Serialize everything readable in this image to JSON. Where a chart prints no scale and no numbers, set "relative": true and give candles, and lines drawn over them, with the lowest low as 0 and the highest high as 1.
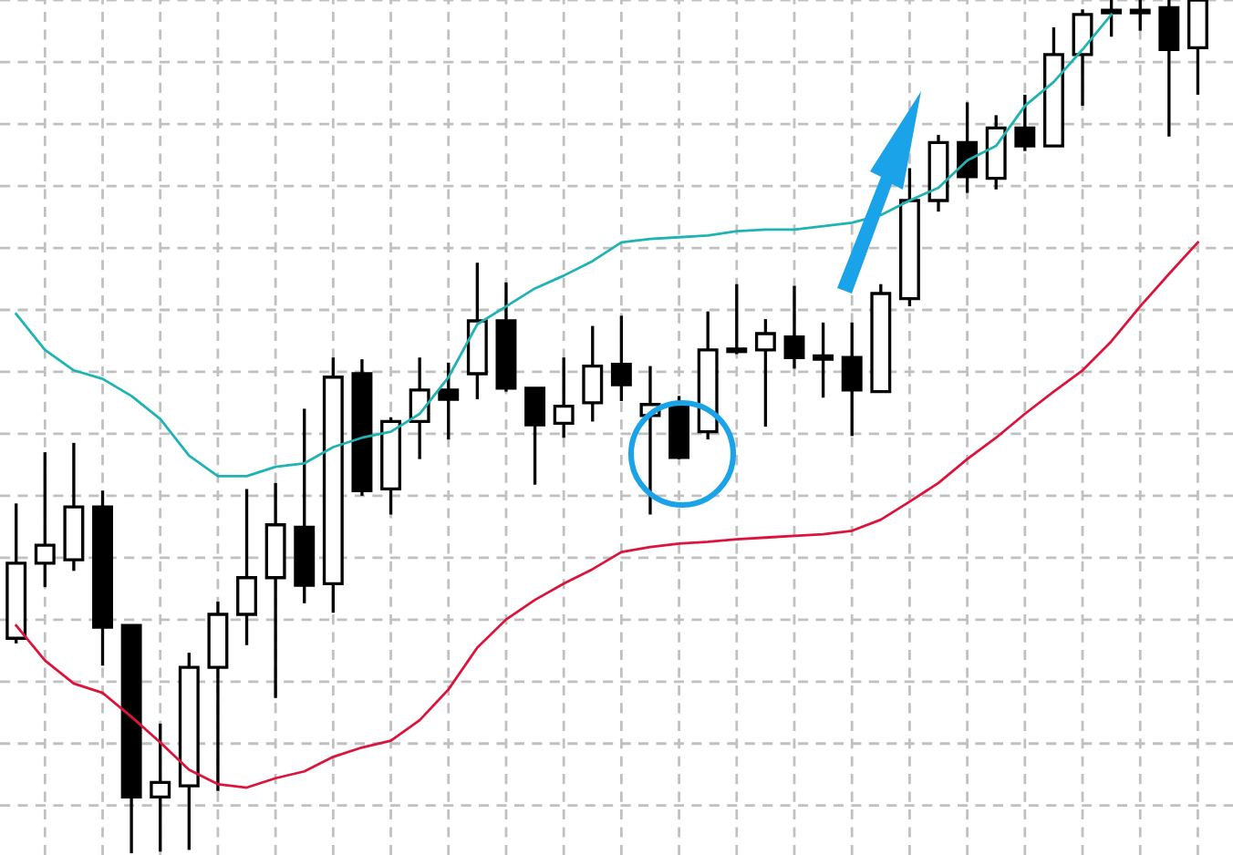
{
  "chart_data": {
    "type": "candlestick",
    "relative": true,
    "grid": true,
    "categories": [
      null,
      null,
      null,
      null,
      null,
      null,
      null,
      null,
      null,
      null,
      null,
      null,
      null,
      null,
      null,
      null,
      null,
      null,
      null,
      null,
      null,
      null,
      null,
      null,
      null,
      null,
      null,
      null,
      null,
      null,
      null,
      null,
      null,
      null,
      null,
      null,
      null,
      null,
      null,
      null,
      null,
      null
    ],
    "ohlc": [
      [
        0.252,
        0.41,
        0.246,
        0.34
      ],
      [
        0.34,
        0.47,
        0.312,
        0.361
      ],
      [
        0.344,
        0.481,
        0.331,
        0.406
      ],
      [
        0.406,
        0.425,
        0.22,
        0.265
      ],
      [
        0.267,
        0.267,
        0.0,
        0.066
      ],
      [
        0.066,
        0.152,
        0.002,
        0.083
      ],
      [
        0.079,
        0.235,
        0.004,
        0.218
      ],
      [
        0.218,
        0.295,
        0.073,
        0.28
      ],
      [
        0.28,
        0.427,
        0.244,
        0.323
      ],
      [
        0.323,
        0.434,
        0.182,
        0.385
      ],
      [
        0.382,
        0.521,
        0.293,
        0.314
      ],
      [
        0.316,
        0.581,
        0.282,
        0.558
      ],
      [
        0.562,
        0.579,
        0.419,
        0.425
      ],
      [
        0.427,
        0.511,
        0.397,
        0.506
      ],
      [
        0.506,
        0.581,
        0.462,
        0.543
      ],
      [
        0.543,
        0.575,
        0.485,
        0.532
      ],
      [
        0.562,
        0.692,
        0.532,
        0.624
      ],
      [
        0.624,
        0.669,
        0.541,
        0.545
      ],
      [
        0.545,
        0.545,
        0.432,
        0.502
      ],
      [
        0.504,
        0.581,
        0.487,
        0.524
      ],
      [
        0.528,
        0.618,
        0.506,
        0.571
      ],
      [
        0.573,
        0.63,
        0.53,
        0.549
      ],
      [
        0.513,
        0.571,
        0.397,
        0.526
      ],
      [
        0.526,
        0.536,
        0.462,
        0.464
      ],
      [
        0.494,
        0.635,
        0.485,
        0.59
      ],
      [
        0.59,
        0.667,
        0.585,
        0.588
      ],
      [
        0.59,
        0.626,
        0.5,
        0.609
      ],
      [
        0.605,
        0.665,
        0.568,
        0.581
      ],
      [
        0.583,
        0.622,
        0.534,
        0.579
      ],
      [
        0.581,
        0.622,
        0.489,
        0.543
      ],
      [
        0.541,
        0.667,
        0.541,
        0.656
      ],
      [
        0.65,
        0.803,
        0.641,
        0.765
      ],
      [
        0.765,
        0.842,
        0.752,
        0.833
      ],
      [
        0.833,
        0.88,
        0.774,
        0.793
      ],
      [
        0.791,
        0.865,
        0.778,
        0.85
      ],
      [
        0.85,
        0.889,
        0.823,
        0.829
      ],
      [
        0.829,
        0.968,
        0.829,
        0.936
      ],
      [
        0.936,
        0.989,
        0.876,
        0.983
      ],
      [
        0.985,
        1.0,
        0.957,
        0.985
      ],
      [
        0.985,
        1.0,
        0.964,
        0.985
      ],
      [
        0.991,
        1.0,
        0.84,
        0.942
      ],
      [
        0.944,
        1.0,
        0.889,
        1.0
      ]
    ],
    "series": [
      {
        "type": "line",
        "color": "#1fb3b3",
        "values": [
          0.632,
          0.59,
          0.566,
          0.556,
          0.536,
          0.509,
          0.466,
          0.442,
          0.442,
          0.453,
          0.457,
          0.476,
          0.487,
          0.494,
          0.515,
          0.558,
          0.62,
          0.641,
          0.662,
          0.677,
          0.694,
          0.716,
          0.72,
          0.722,
          0.724,
          0.729,
          0.731,
          0.731,
          0.735,
          0.739,
          0.748,
          0.765,
          0.78,
          0.812,
          0.829,
          0.876,
          0.904,
          0.942,
          0.983,
          null,
          null,
          null
        ]
      },
      {
        "type": "line",
        "color": "#dc143c",
        "values": [
          0.267,
          0.226,
          0.199,
          0.188,
          0.16,
          0.13,
          0.098,
          0.081,
          0.077,
          0.088,
          0.096,
          0.113,
          0.124,
          0.132,
          0.156,
          0.192,
          0.241,
          0.274,
          0.297,
          0.316,
          0.333,
          0.353,
          0.359,
          0.363,
          0.365,
          0.368,
          0.37,
          0.372,
          0.374,
          0.378,
          0.391,
          0.412,
          0.434,
          0.462,
          0.487,
          0.515,
          0.541,
          0.566,
          0.6,
          0.641,
          0.679,
          0.716
        ]
      }
    ]
  }
}
